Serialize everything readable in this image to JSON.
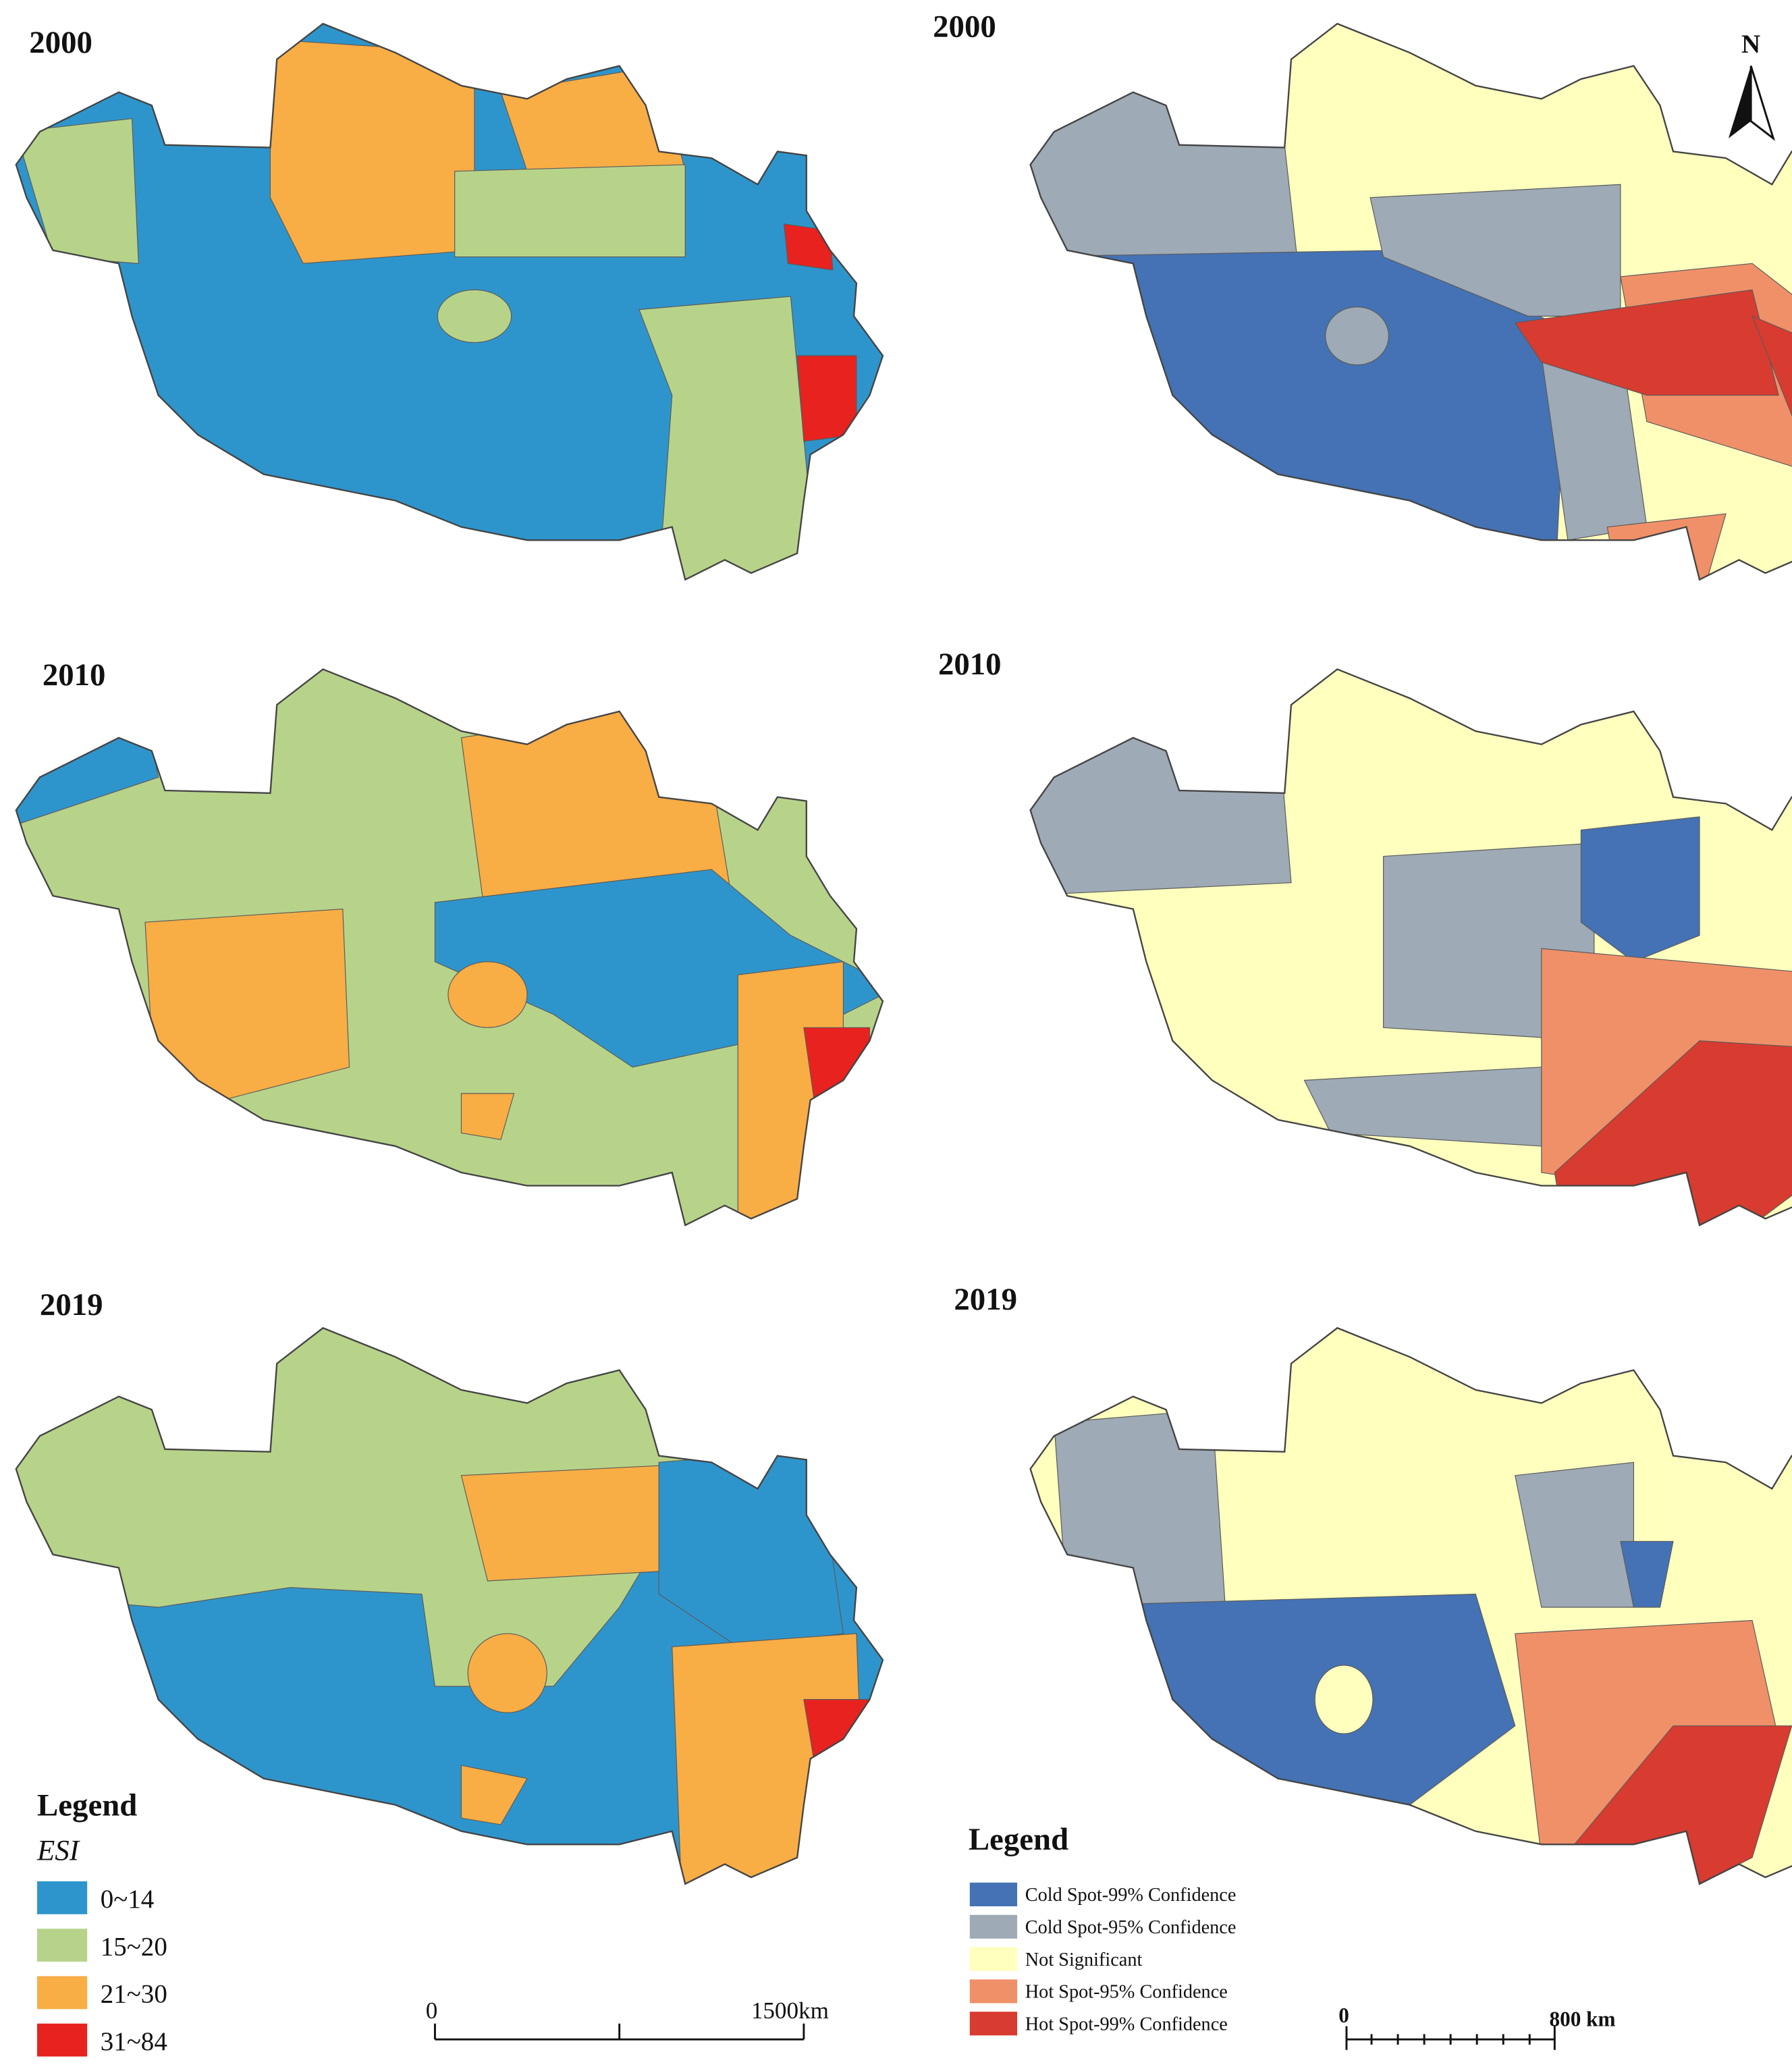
{
  "panels": [
    {
      "year": "2000"
    },
    {
      "year": "2000"
    },
    {
      "year": "2010"
    },
    {
      "year": "2010"
    },
    {
      "year": "2019"
    },
    {
      "year": "2019"
    }
  ],
  "north_arrow": "N",
  "esi_legend": {
    "title": "Legend",
    "subtitle": "ESI",
    "items": [
      {
        "label": "0~14",
        "color": "#2e95cc"
      },
      {
        "label": "15~20",
        "color": "#b7d38a"
      },
      {
        "label": "21~30",
        "color": "#f9ad45"
      },
      {
        "label": "31~84",
        "color": "#e8221f"
      }
    ]
  },
  "hotspot_legend": {
    "title": "Legend",
    "items": [
      {
        "label": "Cold Spot-99% Confidence",
        "color": "#4472b4"
      },
      {
        "label": "Cold Spot-95% Confidence",
        "color": "#9eaab5"
      },
      {
        "label": "Not Significant",
        "color": "#ffffbe"
      },
      {
        "label": "Hot Spot-95% Confidence",
        "color": "#f09068"
      },
      {
        "label": "Hot Spot-99% Confidence",
        "color": "#d83b30"
      }
    ]
  },
  "scale_bars": [
    {
      "start": "0",
      "end": "1500km"
    },
    {
      "start": "0",
      "end": "800 km"
    }
  ]
}
